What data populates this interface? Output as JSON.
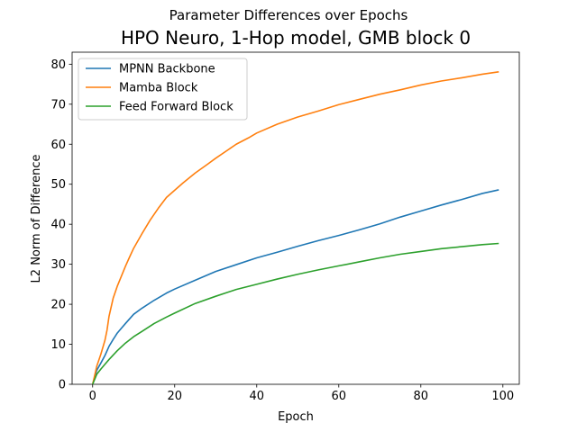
{
  "chart_data": {
    "type": "line",
    "suptitle": "Parameter Differences over Epochs",
    "title": "HPO Neuro, 1-Hop model, GMB block 0",
    "xlabel": "Epoch",
    "ylabel": "L2 Norm of Difference",
    "xlim": [
      -5,
      104
    ],
    "ylim": [
      0,
      83
    ],
    "xticks": [
      0,
      20,
      40,
      60,
      80,
      100
    ],
    "yticks": [
      0,
      10,
      20,
      30,
      40,
      50,
      60,
      70,
      80
    ],
    "grid": false,
    "legend_position": "top-left",
    "series": [
      {
        "name": "MPNN Backbone",
        "color": "#1f77b4",
        "x": [
          0,
          1,
          2,
          3,
          4,
          5,
          6,
          7,
          8,
          10,
          12,
          15,
          18,
          20,
          25,
          30,
          35,
          40,
          45,
          50,
          55,
          60,
          65,
          70,
          75,
          80,
          85,
          90,
          95,
          99
        ],
        "y": [
          0,
          3.5,
          5.3,
          7.2,
          9.5,
          11.2,
          12.8,
          14.0,
          15.2,
          17.5,
          19.0,
          21.0,
          22.8,
          23.8,
          26.0,
          28.2,
          29.9,
          31.6,
          33.0,
          34.5,
          35.9,
          37.2,
          38.6,
          40.1,
          41.8,
          43.3,
          44.8,
          46.2,
          47.7,
          48.6
        ]
      },
      {
        "name": "Mamba Block",
        "color": "#ff7f0e",
        "x": [
          0,
          1,
          2,
          3,
          3.5,
          4,
          5,
          6,
          7,
          8,
          9,
          10,
          12,
          14,
          16,
          18,
          20,
          22,
          25,
          28,
          30,
          33,
          35,
          38,
          40,
          45,
          50,
          55,
          60,
          65,
          70,
          75,
          80,
          85,
          90,
          95,
          99
        ],
        "y": [
          0,
          4.5,
          7.5,
          11.0,
          13.5,
          17.0,
          21.5,
          24.5,
          27.0,
          29.5,
          31.8,
          34.0,
          37.6,
          41.0,
          44.0,
          46.7,
          48.5,
          50.3,
          52.8,
          55.0,
          56.5,
          58.6,
          60.0,
          61.6,
          62.8,
          65.0,
          66.8,
          68.3,
          69.9,
          71.2,
          72.5,
          73.6,
          74.8,
          75.8,
          76.6,
          77.5,
          78.1
        ]
      },
      {
        "name": "Feed Forward Block",
        "color": "#2ca02c",
        "x": [
          0,
          1,
          2,
          3,
          4,
          5,
          6,
          8,
          10,
          12,
          15,
          18,
          20,
          25,
          30,
          35,
          40,
          45,
          50,
          55,
          60,
          65,
          70,
          75,
          80,
          85,
          90,
          95,
          99
        ],
        "y": [
          0,
          2.5,
          3.8,
          5.0,
          6.2,
          7.3,
          8.4,
          10.3,
          11.9,
          13.2,
          15.2,
          16.8,
          17.8,
          20.2,
          22.0,
          23.7,
          25.0,
          26.3,
          27.5,
          28.6,
          29.6,
          30.6,
          31.6,
          32.5,
          33.2,
          33.9,
          34.4,
          34.9,
          35.2
        ]
      }
    ]
  }
}
